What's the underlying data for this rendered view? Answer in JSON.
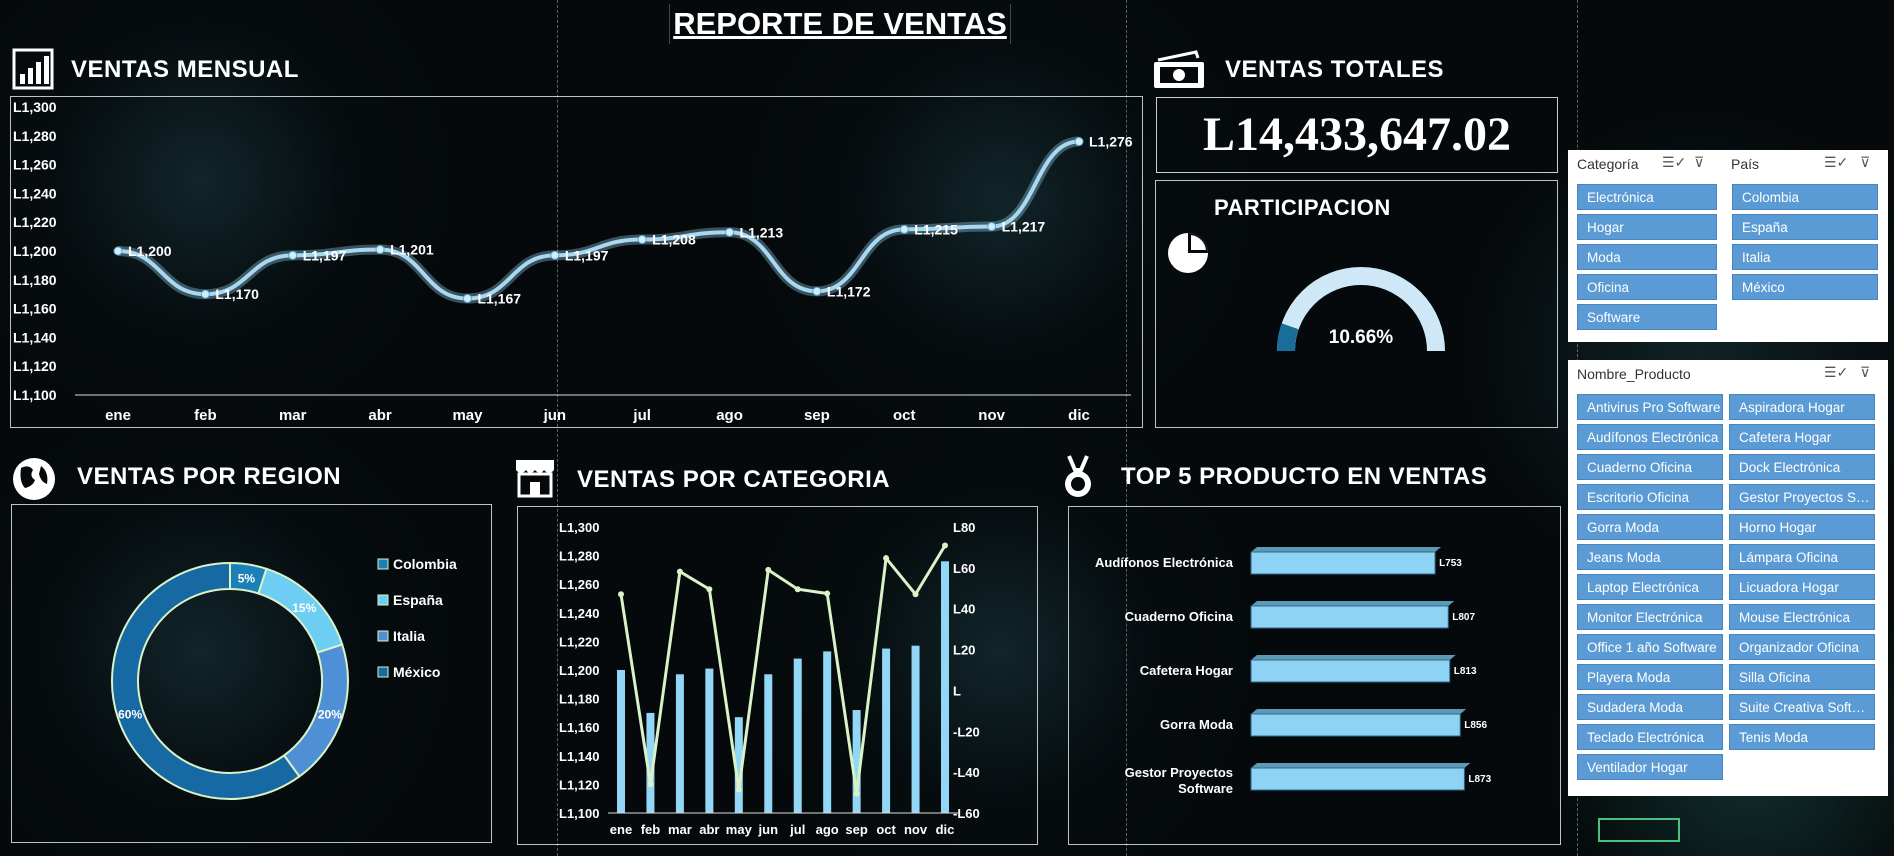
{
  "header": {
    "title": "REPORTE DE VENTAS"
  },
  "sections": {
    "monthly": {
      "title": "VENTAS MENSUAL",
      "icon": "bar-chart-icon"
    },
    "totals": {
      "title": "VENTAS TOTALES",
      "icon": "money-icon",
      "total_value": "L14,433,647.02"
    },
    "participation": {
      "title": "PARTICIPACION",
      "icon": "pie-chart-icon",
      "value_label": "10.66%"
    },
    "region": {
      "title": "VENTAS POR REGION",
      "icon": "globe-icon"
    },
    "category": {
      "title": "VENTAS POR CATEGORIA",
      "icon": "store-icon"
    },
    "top5": {
      "title": "TOP 5 PRODUCTO EN VENTAS",
      "icon": "medal-icon"
    }
  },
  "chart_data": [
    {
      "id": "monthly",
      "type": "line",
      "categories": [
        "ene",
        "feb",
        "mar",
        "abr",
        "may",
        "jun",
        "jul",
        "ago",
        "sep",
        "oct",
        "nov",
        "dic"
      ],
      "values": [
        1200,
        1170,
        1197,
        1201,
        1167,
        1197,
        1208,
        1213,
        1172,
        1215,
        1217,
        1276
      ],
      "value_labels": [
        "L1,200",
        "L1,170",
        "L1,197",
        "L1,201",
        "L1,167",
        "L1,197",
        "L1,208",
        "L1,213",
        "L1,172",
        "L1,215",
        "L1,217",
        "L1,276"
      ],
      "ylim": [
        1100,
        1300
      ],
      "yticks": [
        "L1,100",
        "L1,120",
        "L1,140",
        "L1,160",
        "L1,180",
        "L1,200",
        "L1,220",
        "L1,240",
        "L1,260",
        "L1,280",
        "L1,300"
      ],
      "line_color": "#a9d8f2"
    },
    {
      "id": "participation",
      "type": "gauge",
      "value_percent": 10.66,
      "colors": {
        "fill": "#1b6d99",
        "track": "#cfe8f7"
      }
    },
    {
      "id": "region",
      "type": "pie",
      "labels": [
        "Colombia",
        "España",
        "Italia",
        "México"
      ],
      "values": [
        5,
        15,
        20,
        60
      ],
      "value_labels": [
        "5%",
        "15%",
        "20%",
        "60%"
      ],
      "colors": [
        "#1b80b8",
        "#6dcdf2",
        "#4f8fd6",
        "#1669a2"
      ],
      "legend": "right"
    },
    {
      "id": "category",
      "type": "bar",
      "categories": [
        "ene",
        "feb",
        "mar",
        "abr",
        "may",
        "jun",
        "jul",
        "ago",
        "sep",
        "oct",
        "nov",
        "dic"
      ],
      "series": [
        {
          "values": [
            1200,
            1170,
            1197,
            1201,
            1167,
            1197,
            1208,
            1213,
            1172,
            1215,
            1217,
            1276
          ],
          "color": "#93d7f6"
        },
        {
          "values": [
            1,
            -1.26,
            1.27,
            1.06,
            -1.32,
            1.29,
            1.06,
            1.01,
            -1.37,
            1.43,
            1,
            1.58
          ],
          "color": "#d9f2c6"
        }
      ],
      "ylim": [
        1100,
        1300
      ],
      "y2lim": [
        -1.6,
        1.8
      ],
      "yticks": [
        "L1,100",
        "L1,120",
        "L1,140",
        "L1,160",
        "L1,180",
        "L1,200",
        "L1,220",
        "L1,240",
        "L1,260",
        "L1,280",
        "L1,300"
      ],
      "y2ticks": [
        "-L60",
        "-L40",
        "-L20",
        "L",
        "L20",
        "L40",
        "L60",
        "L80"
      ]
    },
    {
      "id": "top5",
      "type": "bar",
      "orientation": "horizontal",
      "categories": [
        "Audífonos Electrónica",
        "Cuaderno Oficina",
        "Cafetera Hogar",
        "Gorra Moda",
        "Gestor Proyectos Software"
      ],
      "values": [
        753,
        807,
        813,
        856,
        873
      ],
      "value_labels": [
        "L753",
        "L807",
        "L813",
        "L856",
        "L873"
      ],
      "bar_color": "#8fd3f4"
    }
  ],
  "slicers": {
    "categoria": {
      "title": "Categoría",
      "items": [
        "Electrónica",
        "Hogar",
        "Moda",
        "Oficina",
        "Software"
      ]
    },
    "pais": {
      "title": "País",
      "items": [
        "Colombia",
        "España",
        "Italia",
        "México"
      ]
    },
    "producto": {
      "title": "Nombre_Producto",
      "items": [
        "Antivirus Pro Software",
        "Aspiradora Hogar",
        "Audífonos Electrónica",
        "Cafetera Hogar",
        "Cuaderno Oficina",
        "Dock Electrónica",
        "Escritorio Oficina",
        "Gestor Proyectos Software",
        "Gorra Moda",
        "Horno Hogar",
        "Jeans Moda",
        "Lámpara Oficina",
        "Laptop Electrónica",
        "Licuadora Hogar",
        "Monitor Electrónica",
        "Mouse Electrónica",
        "Office 1 año Software",
        "Organizador Oficina",
        "Playera Moda",
        "Silla Oficina",
        "Sudadera Moda",
        "Suite Creativa Software",
        "Teclado Electrónica",
        "Tenis Moda",
        "Ventilador Hogar"
      ]
    }
  }
}
